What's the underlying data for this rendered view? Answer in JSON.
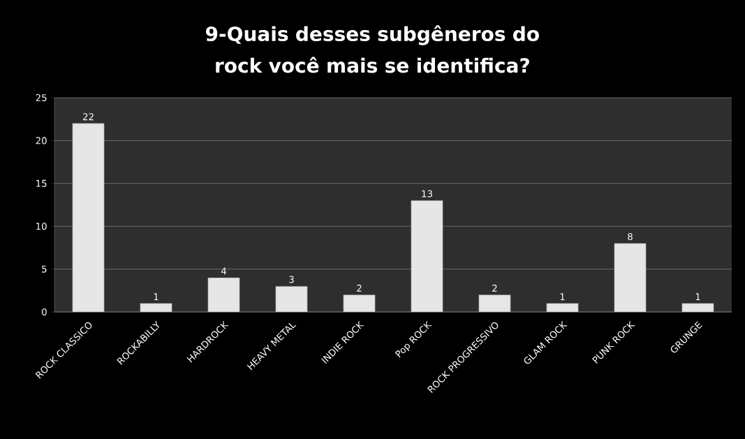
{
  "chart_data": {
    "type": "bar",
    "title": "9-Quais desses subgêneros do rock você mais se identifica?",
    "categories": [
      "ROCK CLASSICO",
      "ROCKABILLY",
      "HARDROCK",
      "HEAVY METAL",
      "INDIE ROCK",
      "Pop ROCK",
      "ROCK PROGRESSIVO",
      "GLAM ROCK",
      "PUNK ROCK",
      "GRUNGE"
    ],
    "values": [
      22,
      1,
      4,
      3,
      2,
      13,
      2,
      1,
      8,
      1
    ],
    "color": "#e6e6e6",
    "ylim": [
      0,
      25
    ],
    "yticks": [
      0,
      5,
      10,
      15,
      20,
      25
    ],
    "grid": "y",
    "data_labels": true
  }
}
